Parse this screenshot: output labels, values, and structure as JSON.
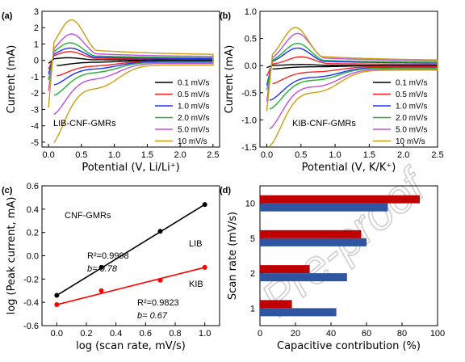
{
  "watermark": "Pre-proof",
  "colors": {
    "black": "#000000",
    "red": "#ff2020",
    "blue": "#2030ff",
    "green": "#20b030",
    "purple": "#c050e0",
    "gold": "#c8a010",
    "darkred": "#c00000",
    "navy": "#2f55a0",
    "redline": "#ff0000"
  },
  "chart_data": [
    {
      "panel": "(a)",
      "type": "line",
      "xlabel": "Potential (V, Li/Li⁺)",
      "ylabel": "Current (mA)",
      "xlim": [
        -0.1,
        2.6
      ],
      "ylim": [
        -5.3,
        3
      ],
      "xticks": [
        0.0,
        0.5,
        1.0,
        1.5,
        2.0,
        2.5
      ],
      "yticks": [
        3,
        2,
        1,
        0,
        -1,
        -2,
        -3,
        -4,
        -5
      ],
      "annotation": "LIB-CNF-GMRs",
      "legend_position": "lower-right",
      "series": [
        {
          "name": "0.1 mV/s",
          "color": "black",
          "ox": 0.3,
          "oy": 0.15,
          "rx": 0.1,
          "ry": -0.3
        },
        {
          "name": "0.5 mV/s",
          "color": "red",
          "ox": 0.32,
          "oy": 0.5,
          "rx": 0.1,
          "ry": -0.9
        },
        {
          "name": "1.0 mV/s",
          "color": "blue",
          "ox": 0.33,
          "oy": 0.7,
          "rx": 0.08,
          "ry": -1.4
        },
        {
          "name": "2.0 mV/s",
          "color": "green",
          "ox": 0.33,
          "oy": 1.0,
          "rx": 0.08,
          "ry": -2.0
        },
        {
          "name": "5.0 mV/s",
          "color": "purple",
          "ox": 0.35,
          "oy": 1.5,
          "rx": 0.07,
          "ry": -3.1
        },
        {
          "name": "10 mV/s",
          "color": "gold",
          "ox": 0.35,
          "oy": 2.3,
          "rx": 0.05,
          "ry": -4.8
        }
      ]
    },
    {
      "panel": "(b)",
      "type": "line",
      "xlabel": "Potential (V, K/K⁺)",
      "ylabel": "Current (mA)",
      "xlim": [
        -0.1,
        2.5
      ],
      "ylim": [
        -1.5,
        1.0
      ],
      "xticks": [
        0.0,
        0.5,
        1.0,
        1.5,
        2.0,
        2.5
      ],
      "yticks": [
        1.0,
        0.5,
        0.0,
        -0.5,
        -1.0,
        -1.5
      ],
      "annotation": "KIB-CNF-GMRs",
      "legend_position": "lower-right",
      "series": [
        {
          "name": "0.1 mV/s",
          "color": "black",
          "ox": 0.5,
          "oy": 0.02,
          "rx": 0.05,
          "ry": -0.06
        },
        {
          "name": "0.5 mV/s",
          "color": "red",
          "ox": 0.5,
          "oy": 0.15,
          "rx": 0.05,
          "ry": -0.32
        },
        {
          "name": "1.0 mV/s",
          "color": "blue",
          "ox": 0.45,
          "oy": 0.3,
          "rx": 0.04,
          "ry": -0.6
        },
        {
          "name": "2.0 mV/s",
          "color": "green",
          "ox": 0.45,
          "oy": 0.38,
          "rx": 0.04,
          "ry": -0.75
        },
        {
          "name": "5.0 mV/s",
          "color": "purple",
          "ox": 0.45,
          "oy": 0.55,
          "rx": 0.03,
          "ry": -1.1
        },
        {
          "name": "10 mV/s",
          "color": "gold",
          "ox": 0.42,
          "oy": 0.65,
          "rx": 0.03,
          "ry": -1.4
        }
      ]
    },
    {
      "panel": "(c)",
      "type": "scatter",
      "xlabel": "log (scan rate, mV/s)",
      "ylabel": "log (Peak current, mA)",
      "xlim": [
        -0.1,
        1.1
      ],
      "ylim": [
        -0.6,
        0.6
      ],
      "xticks": [
        0.0,
        0.2,
        0.4,
        0.6,
        0.8,
        1.0
      ],
      "yticks": [
        0.6,
        0.4,
        0.2,
        0.0,
        -0.2,
        -0.4,
        -0.6
      ],
      "annotation": "CNF-GMRs",
      "series": [
        {
          "name": "LIB",
          "color": "black",
          "x": [
            0,
            0.301,
            0.699,
            1.0
          ],
          "y": [
            -0.34,
            -0.1,
            0.21,
            0.44
          ],
          "r2": "R²=0.9998",
          "b": "b= 0.78"
        },
        {
          "name": "KIB",
          "color": "redline",
          "x": [
            0,
            0.301,
            0.699,
            1.0
          ],
          "y": [
            -0.42,
            -0.3,
            -0.21,
            -0.1
          ],
          "r2": "R²=0.9823",
          "b": "b= 0.67"
        }
      ]
    },
    {
      "panel": "(d)",
      "type": "bar",
      "orientation": "horizontal",
      "xlabel": "Capacitive contribution (%)",
      "ylabel": "Scan rate (mV/s)",
      "xlim": [
        0,
        100
      ],
      "xticks": [
        0,
        20,
        40,
        60,
        80,
        100
      ],
      "categories": [
        "10",
        "5",
        "2",
        "1"
      ],
      "series": [
        {
          "color": "darkred",
          "values": [
            90,
            57,
            28,
            18
          ]
        },
        {
          "color": "navy",
          "values": [
            72,
            60,
            49,
            43
          ]
        }
      ]
    }
  ]
}
